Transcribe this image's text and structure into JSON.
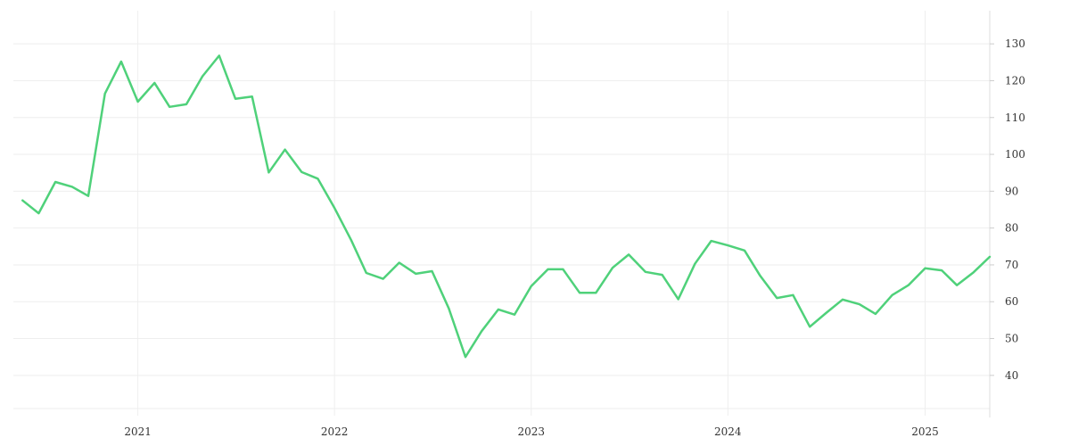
{
  "chart_data": {
    "type": "line",
    "title": "",
    "xlabel": "",
    "ylabel": "",
    "x_ticks": [
      "2021",
      "2022",
      "2023",
      "2024",
      "2025"
    ],
    "y_ticks": [
      40,
      50,
      60,
      70,
      80,
      90,
      100,
      110,
      120,
      130
    ],
    "ylim": [
      31,
      139
    ],
    "xlim": [
      "2020-05-15",
      "2025-05-01"
    ],
    "y_axis_position": "right",
    "grid": true,
    "series_color": "#4fd17a",
    "series": [
      {
        "x": [
          "2020-06-01",
          "2020-07-01",
          "2020-08-01",
          "2020-09-01",
          "2020-10-01",
          "2020-11-01",
          "2020-12-01",
          "2021-01-01",
          "2021-02-01",
          "2021-03-01",
          "2021-04-01",
          "2021-05-01",
          "2021-06-01",
          "2021-07-01",
          "2021-08-01",
          "2021-09-01",
          "2021-10-01",
          "2021-11-01",
          "2021-12-01",
          "2022-01-01",
          "2022-02-01",
          "2022-03-01",
          "2022-04-01",
          "2022-05-01",
          "2022-06-01",
          "2022-07-01",
          "2022-08-01",
          "2022-09-01",
          "2022-10-01",
          "2022-11-01",
          "2022-12-01",
          "2023-01-01",
          "2023-02-01",
          "2023-03-01",
          "2023-04-01",
          "2023-05-01",
          "2023-06-01",
          "2023-07-01",
          "2023-08-01",
          "2023-09-01",
          "2023-10-01",
          "2023-11-01",
          "2023-12-01",
          "2024-01-01",
          "2024-02-01",
          "2024-03-01",
          "2024-04-01",
          "2024-05-01",
          "2024-06-01",
          "2024-07-01",
          "2024-08-01",
          "2024-09-01",
          "2024-10-01",
          "2024-11-01",
          "2024-12-01",
          "2025-01-01",
          "2025-02-01",
          "2025-03-01",
          "2025-04-01",
          "2025-05-01"
        ],
        "values": [
          87.5,
          84,
          92.5,
          91.2,
          88.7,
          116.5,
          125.2,
          114.3,
          119.4,
          112.9,
          113.6,
          121.2,
          126.8,
          115.1,
          115.7,
          95.1,
          101.3,
          95.2,
          93.4,
          85.4,
          76.7,
          67.8,
          66.2,
          70.6,
          67.6,
          68.3,
          58.2,
          45,
          52,
          57.9,
          56.5,
          64.2,
          68.8,
          68.8,
          62.4,
          62.4,
          69.2,
          72.8,
          68.1,
          67.3,
          60.7,
          70.3,
          76.5,
          75.3,
          73.9,
          67,
          61,
          61.8,
          53.2,
          56.9,
          60.6,
          59.3,
          56.7,
          61.8,
          64.5,
          69.1,
          68.5,
          64.5,
          68,
          72.2
        ]
      }
    ]
  }
}
